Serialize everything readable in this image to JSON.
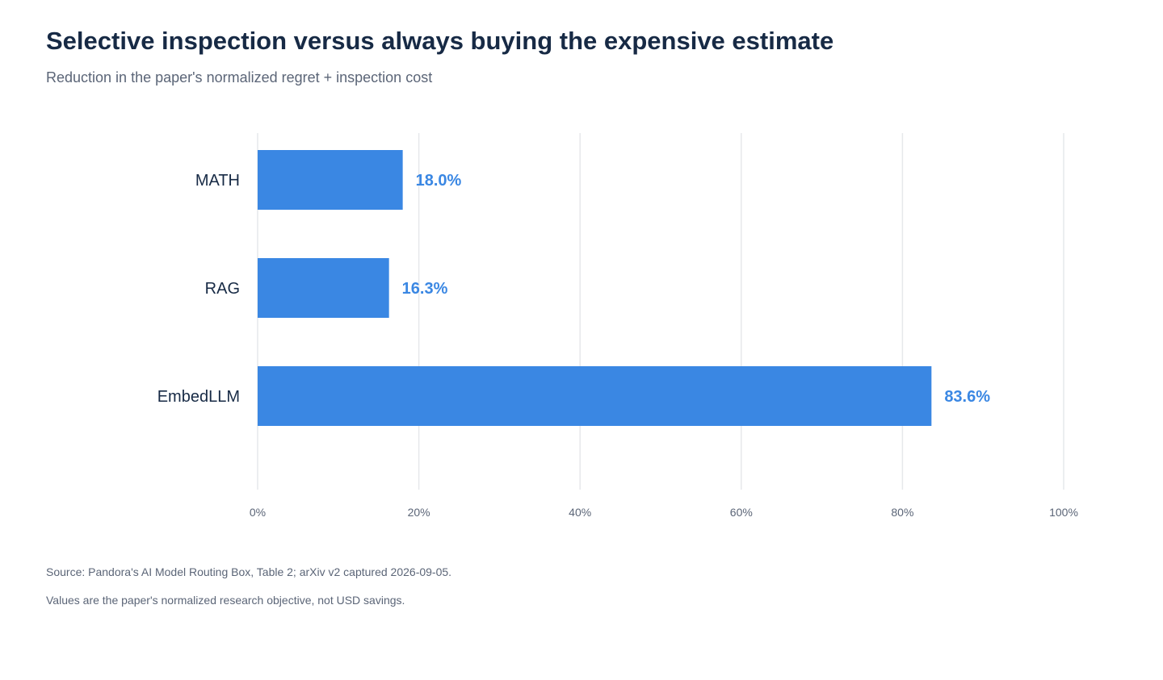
{
  "header": {
    "title": "Selective inspection versus always buying the expensive estimate",
    "subtitle": "Reduction in the paper's normalized regret + inspection cost"
  },
  "footer": {
    "source": "Source: Pandora's AI Model Routing Box, Table 2; arXiv v2 captured 2026-09-05.",
    "note": "Values are the paper's normalized research objective, not USD savings."
  },
  "colors": {
    "bar": "#3a87e3",
    "value_label": "#3a87e3",
    "category_label": "#172a45",
    "grid": "#e6e8eb",
    "tick_label": "#5b6577"
  },
  "chart_data": {
    "type": "bar",
    "orientation": "horizontal",
    "categories": [
      "MATH",
      "RAG",
      "EmbedLLM"
    ],
    "values": [
      18.0,
      16.3,
      83.6
    ],
    "value_labels": [
      "18.0%",
      "16.3%",
      "83.6%"
    ],
    "xlim": [
      0,
      100
    ],
    "xticks": [
      0,
      20,
      40,
      60,
      80,
      100
    ],
    "xtick_labels": [
      "0%",
      "20%",
      "40%",
      "60%",
      "80%",
      "100%"
    ],
    "grid": "vertical",
    "legend": "none"
  }
}
